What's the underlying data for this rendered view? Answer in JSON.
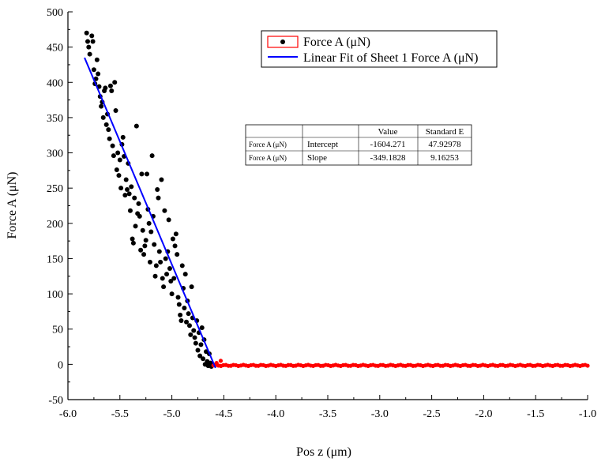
{
  "chart_data": {
    "type": "scatter",
    "title": "",
    "xlabel": "Pos z (μm)",
    "ylabel": "Force A (μN)",
    "xlim": [
      -6.0,
      -1.0
    ],
    "ylim": [
      -50,
      500
    ],
    "x_ticks": [
      -6.0,
      -5.5,
      -5.0,
      -4.5,
      -4.0,
      -3.5,
      -3.0,
      -2.5,
      -2.0,
      -1.5,
      -1.0
    ],
    "x_tick_labels": [
      "-6.0",
      "-5.5",
      "-5.0",
      "-4.5",
      "-4.0",
      "-3.5",
      "-3.0",
      "-2.5",
      "-2.0",
      "-1.5",
      "-1.0"
    ],
    "y_ticks": [
      -50,
      0,
      50,
      100,
      150,
      200,
      250,
      300,
      350,
      400,
      450,
      500
    ],
    "y_tick_labels": [
      "-50",
      "0",
      "50",
      "100",
      "150",
      "200",
      "250",
      "300",
      "350",
      "400",
      "450",
      "500"
    ],
    "legend_position": "top-right",
    "series": [
      {
        "name": "Force A (μN)",
        "kind": "scatter",
        "color": "#000000",
        "points": [
          [
            -5.82,
            470
          ],
          [
            -5.81,
            458
          ],
          [
            -5.8,
            450
          ],
          [
            -5.79,
            440
          ],
          [
            -5.77,
            466
          ],
          [
            -5.76,
            458
          ],
          [
            -5.75,
            418
          ],
          [
            -5.74,
            398
          ],
          [
            -5.73,
            405
          ],
          [
            -5.72,
            432
          ],
          [
            -5.71,
            412
          ],
          [
            -5.7,
            394
          ],
          [
            -5.69,
            380
          ],
          [
            -5.68,
            366
          ],
          [
            -5.67,
            372
          ],
          [
            -5.66,
            350
          ],
          [
            -5.65,
            388
          ],
          [
            -5.64,
            392
          ],
          [
            -5.63,
            340
          ],
          [
            -5.62,
            355
          ],
          [
            -5.61,
            333
          ],
          [
            -5.6,
            320
          ],
          [
            -5.59,
            395
          ],
          [
            -5.58,
            388
          ],
          [
            -5.57,
            310
          ],
          [
            -5.56,
            296
          ],
          [
            -5.55,
            400
          ],
          [
            -5.54,
            360
          ],
          [
            -5.53,
            276
          ],
          [
            -5.52,
            300
          ],
          [
            -5.51,
            268
          ],
          [
            -5.5,
            290
          ],
          [
            -5.49,
            250
          ],
          [
            -5.48,
            312
          ],
          [
            -5.47,
            322
          ],
          [
            -5.46,
            295
          ],
          [
            -5.45,
            240
          ],
          [
            -5.44,
            262
          ],
          [
            -5.43,
            248
          ],
          [
            -5.42,
            285
          ],
          [
            -5.41,
            242
          ],
          [
            -5.4,
            218
          ],
          [
            -5.39,
            252
          ],
          [
            -5.38,
            178
          ],
          [
            -5.37,
            172
          ],
          [
            -5.36,
            236
          ],
          [
            -5.35,
            196
          ],
          [
            -5.34,
            338
          ],
          [
            -5.33,
            214
          ],
          [
            -5.32,
            228
          ],
          [
            -5.31,
            210
          ],
          [
            -5.3,
            162
          ],
          [
            -5.29,
            270
          ],
          [
            -5.28,
            190
          ],
          [
            -5.27,
            156
          ],
          [
            -5.26,
            168
          ],
          [
            -5.25,
            176
          ],
          [
            -5.24,
            270
          ],
          [
            -5.23,
            220
          ],
          [
            -5.22,
            200
          ],
          [
            -5.21,
            145
          ],
          [
            -5.2,
            188
          ],
          [
            -5.19,
            296
          ],
          [
            -5.18,
            210
          ],
          [
            -5.17,
            170
          ],
          [
            -5.16,
            125
          ],
          [
            -5.15,
            140
          ],
          [
            -5.14,
            248
          ],
          [
            -5.13,
            236
          ],
          [
            -5.12,
            160
          ],
          [
            -5.11,
            145
          ],
          [
            -5.1,
            262
          ],
          [
            -5.09,
            122
          ],
          [
            -5.08,
            110
          ],
          [
            -5.07,
            218
          ],
          [
            -5.06,
            150
          ],
          [
            -5.05,
            128
          ],
          [
            -5.04,
            160
          ],
          [
            -5.03,
            205
          ],
          [
            -5.02,
            136
          ],
          [
            -5.01,
            118
          ],
          [
            -5.0,
            100
          ],
          [
            -4.99,
            178
          ],
          [
            -4.98,
            122
          ],
          [
            -4.97,
            168
          ],
          [
            -4.96,
            185
          ],
          [
            -4.95,
            156
          ],
          [
            -4.94,
            95
          ],
          [
            -4.93,
            85
          ],
          [
            -4.92,
            70
          ],
          [
            -4.91,
            62
          ],
          [
            -4.9,
            140
          ],
          [
            -4.89,
            108
          ],
          [
            -4.88,
            80
          ],
          [
            -4.87,
            128
          ],
          [
            -4.86,
            60
          ],
          [
            -4.85,
            90
          ],
          [
            -4.84,
            72
          ],
          [
            -4.83,
            55
          ],
          [
            -4.82,
            42
          ],
          [
            -4.81,
            110
          ],
          [
            -4.8,
            66
          ],
          [
            -4.79,
            48
          ],
          [
            -4.78,
            38
          ],
          [
            -4.77,
            30
          ],
          [
            -4.76,
            62
          ],
          [
            -4.75,
            20
          ],
          [
            -4.74,
            45
          ],
          [
            -4.73,
            12
          ],
          [
            -4.72,
            28
          ],
          [
            -4.71,
            52
          ],
          [
            -4.7,
            8
          ],
          [
            -4.69,
            35
          ],
          [
            -4.68,
            0
          ],
          [
            -4.67,
            18
          ],
          [
            -4.66,
            4
          ],
          [
            -4.65,
            -2
          ],
          [
            -4.64,
            15
          ],
          [
            -4.63,
            2
          ],
          [
            -4.62,
            -3
          ],
          [
            -4.61,
            0
          ]
        ]
      },
      {
        "name": "Force A (μN)",
        "kind": "scatter",
        "color": "#ff0000",
        "x_start": -4.6,
        "x_end": -1.0,
        "y_approx": -1.5
      },
      {
        "name": "Linear Fit of Sheet 1 Force A (μN)",
        "kind": "line",
        "color": "#0000ff",
        "x_range": [
          -5.84,
          -4.58
        ],
        "intercept": -1604.271,
        "slope": -349.1828
      }
    ],
    "legend": [
      {
        "label": "Force A (μN)",
        "marker": "dot-in-red-box"
      },
      {
        "label": "Linear Fit of Sheet 1 Force A (μN)",
        "marker": "blue-line"
      }
    ],
    "fit_table": {
      "headers": [
        "",
        "",
        "Value",
        "Standard E"
      ],
      "rows": [
        [
          "Force A (μN)",
          "Intercept",
          "-1604.271",
          "47.92978"
        ],
        [
          "Force A (μN)",
          "Slope",
          "-349.1828",
          "9.16253"
        ]
      ]
    }
  }
}
